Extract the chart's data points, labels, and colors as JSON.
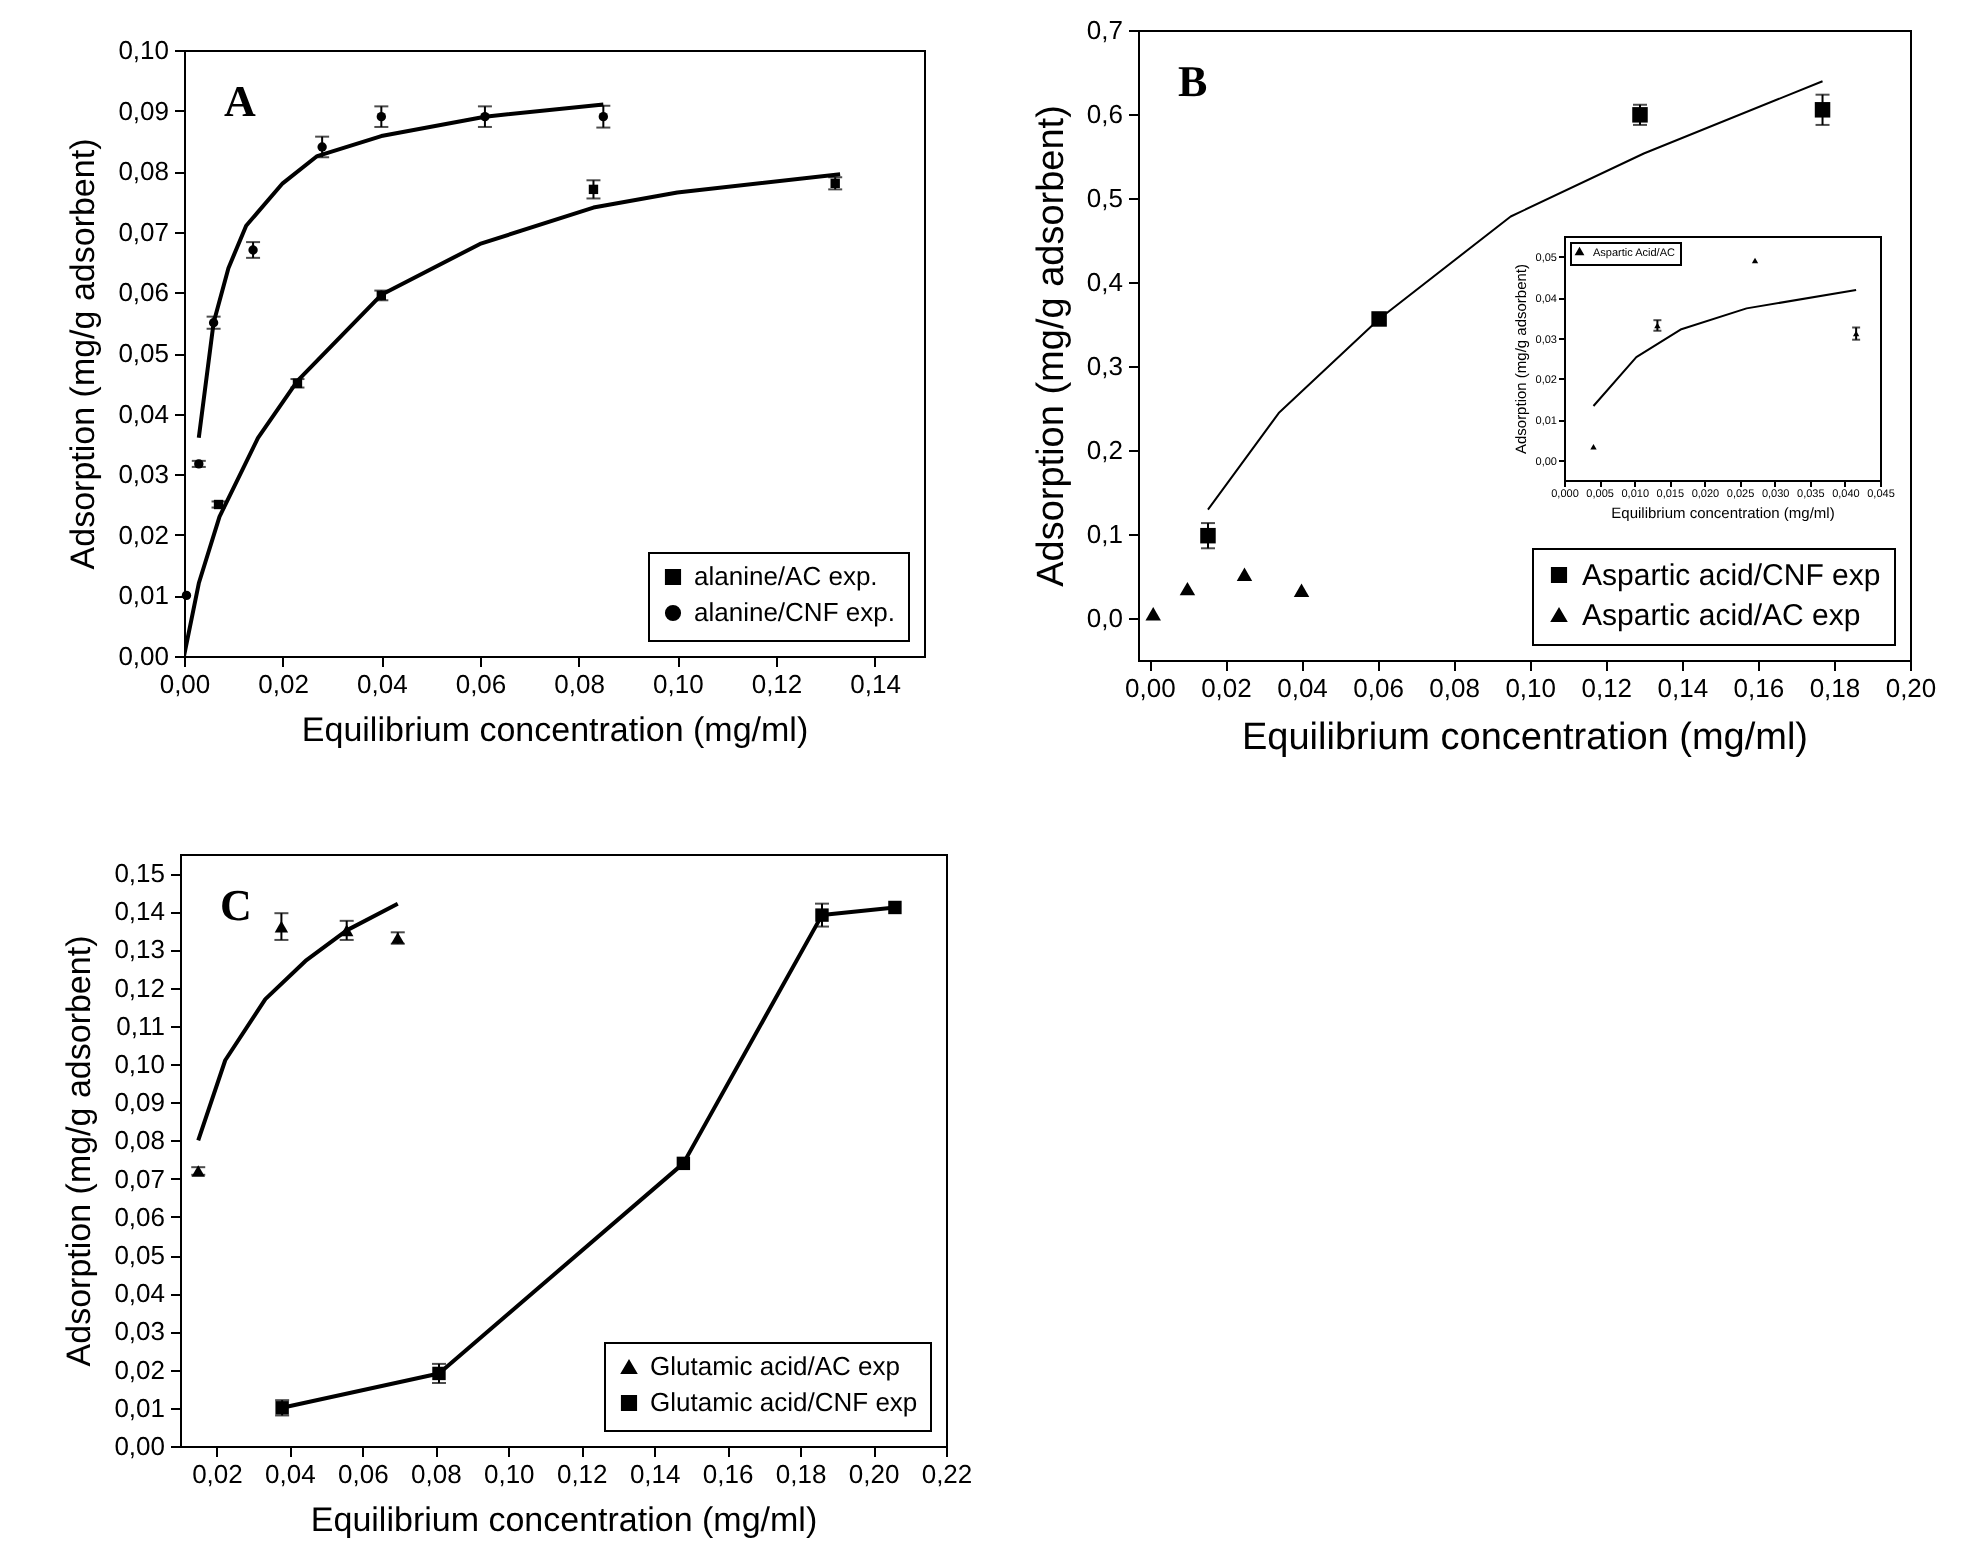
{
  "chart_data": [
    {
      "type": "scatter",
      "xlabel": "Equilibrium concentration (mg/ml)",
      "ylabel": "Adsorption (mg/g adsorbent)",
      "annotations": [
        "A"
      ],
      "legend": "bottom right",
      "xlim": [
        0,
        0.15
      ],
      "xticks": [
        {
          "value": 0,
          "label": "0,00"
        },
        {
          "value": 0.02,
          "label": "0,02"
        },
        {
          "value": 0.04,
          "label": "0,04"
        },
        {
          "value": 0.06,
          "label": "0,06"
        },
        {
          "value": 0.08,
          "label": "0,08"
        },
        {
          "value": 0.1,
          "label": "0,10"
        },
        {
          "value": 0.12,
          "label": "0,12"
        },
        {
          "value": 0.14,
          "label": "0,14"
        }
      ],
      "ylim": [
        0,
        0.1
      ],
      "yticks": [
        {
          "value": 0,
          "label": "0,00"
        },
        {
          "value": 0.01,
          "label": "0,01"
        },
        {
          "value": 0.02,
          "label": "0,02"
        },
        {
          "value": 0.03,
          "label": "0,03"
        },
        {
          "value": 0.04,
          "label": "0,04"
        },
        {
          "value": 0.05,
          "label": "0,05"
        },
        {
          "value": 0.06,
          "label": "0,06"
        },
        {
          "value": 0.07,
          "label": "0,07"
        },
        {
          "value": 0.08,
          "label": "0,08"
        },
        {
          "value": 0.09,
          "label": "0,09"
        },
        {
          "value": 0.1,
          "label": "0,10"
        }
      ],
      "series": [
        {
          "name": "alanine/AC exp.",
          "type": "scatter",
          "marker": "square",
          "color": "#000000",
          "x": [
            0.007,
            0.023,
            0.04,
            0.083,
            0.132
          ],
          "values": [
            0.025,
            0.045,
            0.0595,
            0.077,
            0.078
          ],
          "errors": [
            0.0005,
            0.0007,
            0.0008,
            0.0015,
            0.001
          ]
        },
        {
          "name": "alanine/CNF exp.",
          "type": "scatter",
          "marker": "circle",
          "color": "#000000",
          "x": [
            0.0005,
            0.003,
            0.006,
            0.014,
            0.028,
            0.04,
            0.061,
            0.085
          ],
          "values": [
            0.01,
            0.0317,
            0.055,
            0.067,
            0.084,
            0.089,
            0.089,
            0.089
          ],
          "errors": [
            null,
            0.0005,
            0.001,
            0.0013,
            0.0017,
            0.0017,
            0.0017,
            0.0018
          ]
        },
        {
          "type": "line",
          "marker": "none",
          "color": "#000000",
          "x": [
            0,
            0.003,
            0.0072,
            0.015,
            0.023,
            0.04,
            0.06,
            0.083,
            0.1,
            0.133
          ],
          "values": [
            0,
            0.012,
            0.023,
            0.036,
            0.0454,
            0.0596,
            0.068,
            0.074,
            0.0765,
            0.0795
          ]
        },
        {
          "type": "line",
          "marker": "none",
          "color": "#000000",
          "x": [
            0.003,
            0.006,
            0.009,
            0.0126,
            0.02,
            0.027,
            0.04,
            0.061,
            0.085
          ],
          "values": [
            0.036,
            0.055,
            0.064,
            0.071,
            0.078,
            0.0825,
            0.0858,
            0.089,
            0.091
          ]
        }
      ]
    },
    {
      "type": "scatter",
      "xlabel": "Equilibrium concentration (mg/ml)",
      "ylabel": "Adsorption (mg/g adsorbent)",
      "annotations": [
        "B"
      ],
      "legend": "bottom right",
      "xlim": [
        -0.003,
        0.2
      ],
      "xticks": [
        {
          "value": 0,
          "label": "0,00"
        },
        {
          "value": 0.02,
          "label": "0,02"
        },
        {
          "value": 0.04,
          "label": "0,04"
        },
        {
          "value": 0.06,
          "label": "0,06"
        },
        {
          "value": 0.08,
          "label": "0,08"
        },
        {
          "value": 0.1,
          "label": "0,10"
        },
        {
          "value": 0.12,
          "label": "0,12"
        },
        {
          "value": 0.14,
          "label": "0,14"
        },
        {
          "value": 0.16,
          "label": "0,16"
        },
        {
          "value": 0.18,
          "label": "0,18"
        },
        {
          "value": 0.2,
          "label": "0,20"
        }
      ],
      "ylim": [
        -0.05,
        0.7
      ],
      "yticks": [
        {
          "value": 0,
          "label": "0,0"
        },
        {
          "value": 0.1,
          "label": "0,1"
        },
        {
          "value": 0.2,
          "label": "0,2"
        },
        {
          "value": 0.3,
          "label": "0,3"
        },
        {
          "value": 0.4,
          "label": "0,4"
        },
        {
          "value": 0.5,
          "label": "0,5"
        },
        {
          "value": 0.6,
          "label": "0,6"
        },
        {
          "value": 0.7,
          "label": "0,7"
        }
      ],
      "series": [
        {
          "name": "Aspartic acid/CNF exp",
          "type": "scatter",
          "marker": "square",
          "color": "#000000",
          "x": [
            0.0154,
            0.0604,
            0.129,
            0.177
          ],
          "values": [
            0.098,
            0.356,
            0.599,
            0.605
          ],
          "errors": [
            0.015,
            0.005,
            0.012,
            0.018
          ]
        },
        {
          "name": "Aspartic acid/AC exp",
          "type": "scatter",
          "marker": "triangle",
          "color": "#000000",
          "x": [
            0.001,
            0.01,
            0.025,
            0.04
          ],
          "values": [
            0.005,
            0.035,
            0.052,
            0.033
          ]
        },
        {
          "type": "line",
          "marker": "none",
          "color": "#000000",
          "x": [
            0.0154,
            0.034,
            0.0604,
            0.095,
            0.13,
            0.177
          ],
          "values": [
            0.129,
            0.244,
            0.356,
            0.478,
            0.553,
            0.639
          ]
        }
      ]
    },
    {
      "type": "scatter",
      "xlabel": "Equilibrium concentration (mg/ml)",
      "ylabel": "Adsorption (mg/g adsorbent)",
      "legend": "top left",
      "xlim": [
        0,
        0.045
      ],
      "xticks": [
        {
          "value": 0,
          "label": "0,000"
        },
        {
          "value": 0.005,
          "label": "0,005"
        },
        {
          "value": 0.01,
          "label": "0,010"
        },
        {
          "value": 0.015,
          "label": "0,015"
        },
        {
          "value": 0.02,
          "label": "0,020"
        },
        {
          "value": 0.025,
          "label": "0,025"
        },
        {
          "value": 0.03,
          "label": "0,030"
        },
        {
          "value": 0.035,
          "label": "0,035"
        },
        {
          "value": 0.04,
          "label": "0,040"
        },
        {
          "value": 0.045,
          "label": "0,045"
        }
      ],
      "ylim": [
        -0.005,
        0.055
      ],
      "yticks": [
        {
          "value": 0,
          "label": "0,00"
        },
        {
          "value": 0.01,
          "label": "0,01"
        },
        {
          "value": 0.02,
          "label": "0,02"
        },
        {
          "value": 0.03,
          "label": "0,03"
        },
        {
          "value": 0.04,
          "label": "0,04"
        },
        {
          "value": 0.05,
          "label": "0,05"
        }
      ],
      "series": [
        {
          "name": "Aspartic Acid/AC",
          "type": "scatter",
          "marker": "triangle",
          "color": "#000000",
          "x": [
            0.0042,
            0.0133,
            0.0272,
            0.0416
          ],
          "values": [
            0.0032,
            0.033,
            0.049,
            0.031
          ],
          "errors": [
            null,
            0.0013,
            null,
            0.0015
          ]
        },
        {
          "type": "line",
          "marker": "none",
          "color": "#000000",
          "x": [
            0.0042,
            0.0103,
            0.0166,
            0.026,
            0.0416
          ],
          "values": [
            0.0132,
            0.0252,
            0.032,
            0.0372,
            0.0417
          ]
        }
      ]
    },
    {
      "type": "scatter",
      "xlabel": "Equilibrium concentration (mg/ml)",
      "ylabel": "Adsorption (mg/g adsorbent)",
      "annotations": [
        "C"
      ],
      "legend": "bottom right",
      "xlim": [
        0.01,
        0.22
      ],
      "xticks": [
        {
          "value": 0.02,
          "label": "0,02"
        },
        {
          "value": 0.04,
          "label": "0,04"
        },
        {
          "value": 0.06,
          "label": "0,06"
        },
        {
          "value": 0.08,
          "label": "0,08"
        },
        {
          "value": 0.1,
          "label": "0,10"
        },
        {
          "value": 0.12,
          "label": "0,12"
        },
        {
          "value": 0.14,
          "label": "0,14"
        },
        {
          "value": 0.16,
          "label": "0,16"
        },
        {
          "value": 0.18,
          "label": "0,18"
        },
        {
          "value": 0.2,
          "label": "0,20"
        },
        {
          "value": 0.22,
          "label": "0,22"
        }
      ],
      "ylim": [
        0,
        0.155
      ],
      "yticks": [
        {
          "value": 0,
          "label": "0,00"
        },
        {
          "value": 0.01,
          "label": "0,01"
        },
        {
          "value": 0.02,
          "label": "0,02"
        },
        {
          "value": 0.03,
          "label": "0,03"
        },
        {
          "value": 0.04,
          "label": "0,04"
        },
        {
          "value": 0.05,
          "label": "0,05"
        },
        {
          "value": 0.06,
          "label": "0,06"
        },
        {
          "value": 0.07,
          "label": "0,07"
        },
        {
          "value": 0.08,
          "label": "0,08"
        },
        {
          "value": 0.09,
          "label": "0,09"
        },
        {
          "value": 0.1,
          "label": "0,10"
        },
        {
          "value": 0.11,
          "label": "0,11"
        },
        {
          "value": 0.12,
          "label": "0,12"
        },
        {
          "value": 0.13,
          "label": "0,13"
        },
        {
          "value": 0.14,
          "label": "0,14"
        },
        {
          "value": 0.15,
          "label": "0,15"
        }
      ],
      "series": [
        {
          "name": "Glutamic acid/AC exp",
          "type": "scatter",
          "marker": "triangle",
          "color": "#000000",
          "x": [
            0.015,
            0.0378,
            0.0557,
            0.0697
          ],
          "values": [
            0.072,
            0.136,
            0.135,
            0.133
          ],
          "errors": [
            0.001,
            0.0035,
            0.0025,
            0.0015
          ]
        },
        {
          "name": "Glutamic acid/CNF exp",
          "type": "line",
          "marker": "square",
          "color": "#000000",
          "x": [
            0.038,
            0.081,
            0.148,
            0.186,
            0.206
          ],
          "values": [
            0.01,
            0.019,
            0.074,
            0.139,
            0.141
          ],
          "errors": [
            0.002,
            0.0025,
            null,
            0.003,
            null
          ]
        },
        {
          "type": "line",
          "marker": "none",
          "color": "#000000",
          "x": [
            0.015,
            0.0224,
            0.0334,
            0.0444,
            0.0557,
            0.0697
          ],
          "values": [
            0.08,
            0.101,
            0.117,
            0.127,
            0.135,
            0.142
          ]
        }
      ]
    }
  ]
}
